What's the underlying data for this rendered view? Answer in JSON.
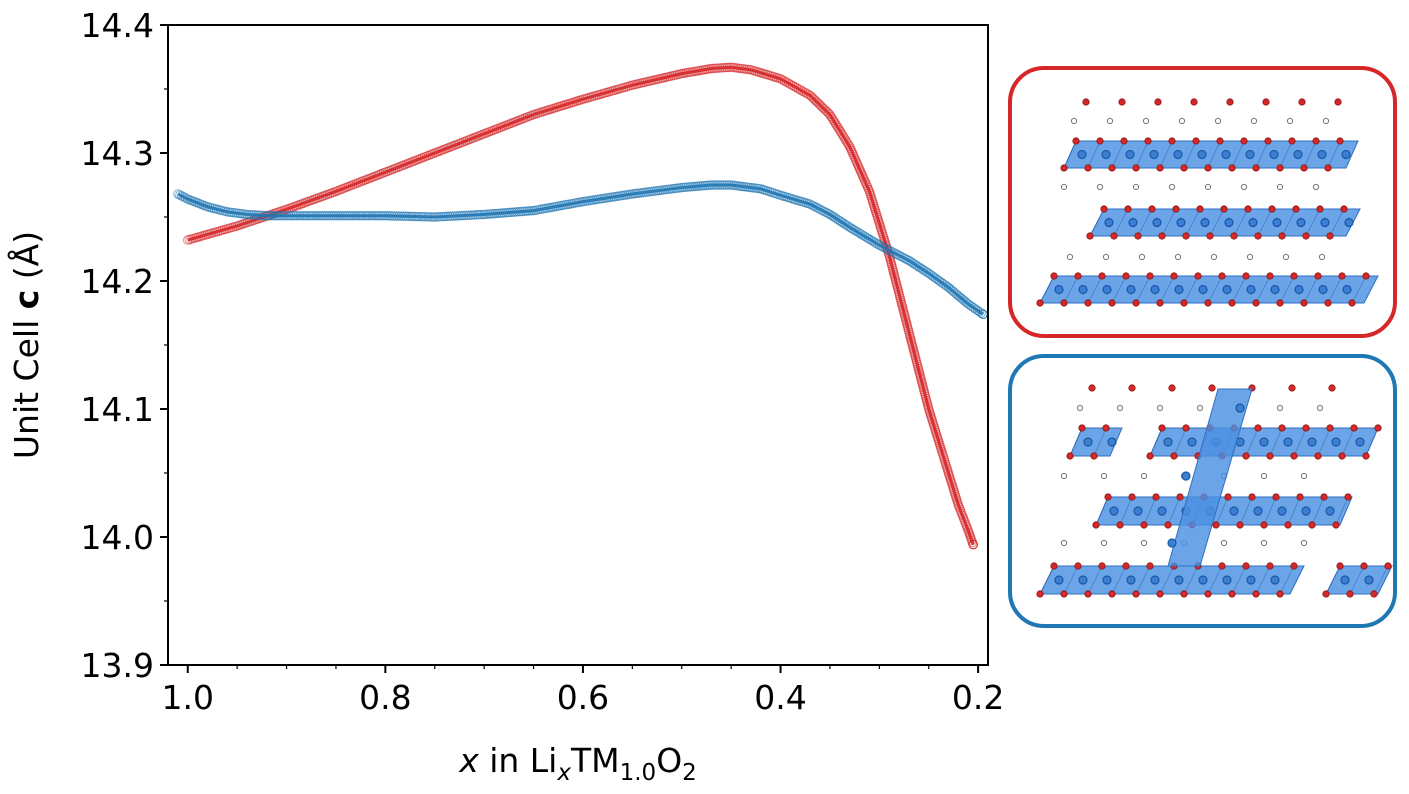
{
  "chart_data": {
    "type": "scatter",
    "title": "",
    "xlabel": {
      "prefix": "x",
      "mid": " in Li",
      "sub1": "x",
      "tm": "TM",
      "sub2": "1.0",
      "o": "O",
      "sub3": "2"
    },
    "ylabel": {
      "prefix": "Unit Cell ",
      "bold": "c",
      "suffix": " (Å)"
    },
    "xlim": [
      1.02,
      0.19
    ],
    "ylim": [
      13.9,
      14.4
    ],
    "x_axis_reversed": true,
    "xticks": [
      1.0,
      0.8,
      0.6,
      0.4,
      0.2
    ],
    "xtick_labels": [
      "1.0",
      "0.8",
      "0.6",
      "0.4",
      "0.2"
    ],
    "yticks": [
      13.9,
      14.0,
      14.1,
      14.2,
      14.3,
      14.4
    ],
    "ytick_labels": [
      "13.9",
      "14.0",
      "14.1",
      "14.2",
      "14.3",
      "14.4"
    ],
    "marker": "open-circle",
    "series": [
      {
        "color": "#d62728",
        "x": [
          1.0,
          0.95,
          0.9,
          0.85,
          0.8,
          0.75,
          0.7,
          0.65,
          0.6,
          0.55,
          0.5,
          0.47,
          0.45,
          0.43,
          0.4,
          0.37,
          0.35,
          0.33,
          0.31,
          0.3,
          0.29,
          0.28,
          0.27,
          0.26,
          0.25,
          0.24,
          0.23,
          0.22,
          0.21,
          0.205
        ],
        "y": [
          14.232,
          14.243,
          14.256,
          14.27,
          14.285,
          14.3,
          14.315,
          14.33,
          14.342,
          14.353,
          14.362,
          14.366,
          14.367,
          14.365,
          14.358,
          14.345,
          14.33,
          14.305,
          14.27,
          14.245,
          14.22,
          14.19,
          14.16,
          14.13,
          14.1,
          14.075,
          14.05,
          14.025,
          14.005,
          13.994
        ]
      },
      {
        "color": "#1f77b4",
        "x": [
          1.01,
          1.0,
          0.98,
          0.96,
          0.94,
          0.92,
          0.9,
          0.85,
          0.8,
          0.75,
          0.7,
          0.65,
          0.6,
          0.55,
          0.5,
          0.47,
          0.45,
          0.42,
          0.4,
          0.37,
          0.35,
          0.33,
          0.3,
          0.27,
          0.25,
          0.23,
          0.21,
          0.195
        ],
        "y": [
          14.268,
          14.264,
          14.258,
          14.254,
          14.252,
          14.251,
          14.251,
          14.251,
          14.251,
          14.25,
          14.252,
          14.255,
          14.262,
          14.268,
          14.273,
          14.275,
          14.275,
          14.272,
          14.267,
          14.26,
          14.252,
          14.242,
          14.228,
          14.216,
          14.206,
          14.195,
          14.182,
          14.174
        ]
      }
    ]
  },
  "structures": [
    {
      "border_color": "#d62728",
      "ordering": "layered"
    },
    {
      "border_color": "#1f77b4",
      "ordering": "disordered"
    }
  ]
}
